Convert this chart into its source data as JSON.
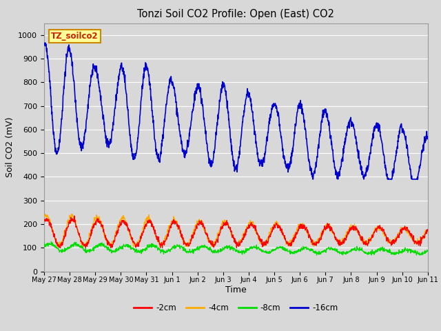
{
  "title": "Tonzi Soil CO2 Profile: Open (East) CO2",
  "xlabel": "Time",
  "ylabel": "Soil CO2 (mV)",
  "ylim": [
    0,
    1050
  ],
  "yticks": [
    0,
    100,
    200,
    300,
    400,
    500,
    600,
    700,
    800,
    900,
    1000
  ],
  "bg_color": "#d8d8d8",
  "plot_bg_color": "#d8d8d8",
  "grid_color": "#ffffff",
  "colors": {
    "2cm": "#ff0000",
    "4cm": "#ffaa00",
    "8cm": "#00dd00",
    "16cm": "#0000cc"
  },
  "legend_label_box": "TZ_soilco2",
  "legend_box_facecolor": "#ffff99",
  "legend_box_edgecolor": "#cc8800",
  "x_tick_labels": [
    "May 27",
    "May 28",
    "May 29",
    "May 30",
    "May 31",
    "Jun 1",
    "Jun 2",
    "Jun 3",
    "Jun 4",
    "Jun 5",
    "Jun 6",
    "Jun 7",
    "Jun 8",
    "Jun 9",
    "Jun 10",
    "Jun 11"
  ]
}
